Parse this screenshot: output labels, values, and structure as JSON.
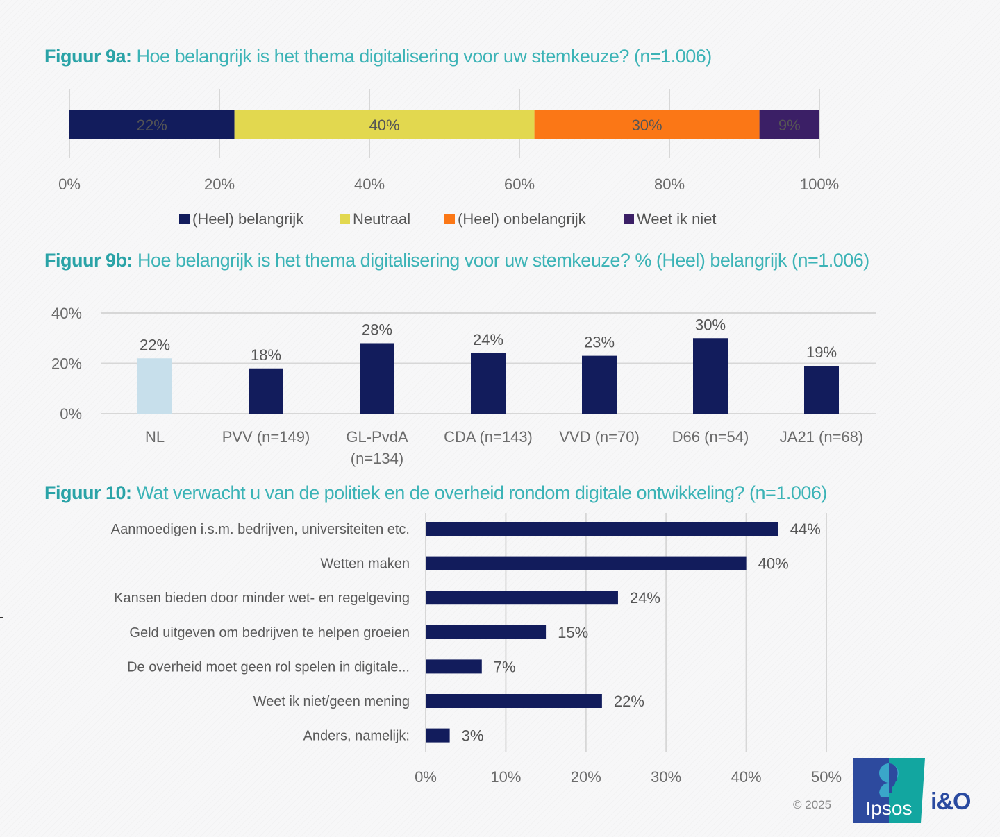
{
  "colors": {
    "title_teal": "#3bb3b6",
    "navy": "#121c5c",
    "yellow": "#e2d84f",
    "orange": "#fb7716",
    "purple": "#3b1f66",
    "light_blue": "#c7dfeb",
    "grid": "#d7d7d7"
  },
  "footer": {
    "copyright": "© 2025",
    "logo_text": "Ipsos",
    "partner_logo": "i&O"
  },
  "chart_data": [
    {
      "id": "fig9a",
      "type": "bar",
      "orientation": "horizontal-stacked",
      "title_label": "Figuur 9a:",
      "title": "Hoe belangrijk is het thema digitalisering voor uw stemkeuze? (n=1.006)",
      "xlim": [
        0,
        100
      ],
      "xticks": [
        "0%",
        "20%",
        "40%",
        "60%",
        "80%",
        "100%"
      ],
      "xtick_values": [
        0,
        20,
        40,
        60,
        80,
        100
      ],
      "grid": true,
      "legend_position": "bottom",
      "series": [
        {
          "name": "(Heel) belangrijk",
          "value": 22,
          "label": "22%",
          "color": "#121c5c",
          "label_color": "#ffffff"
        },
        {
          "name": "Neutraal",
          "value": 40,
          "label": "40%",
          "color": "#e2d84f",
          "label_color": "#6a6a3a"
        },
        {
          "name": "(Heel) onbelangrijk",
          "value": 30,
          "label": "30%",
          "color": "#fb7716",
          "label_color": "#ffe0c4"
        },
        {
          "name": "Weet ik niet",
          "value": 9,
          "label": "9%",
          "color": "#3b1f66",
          "label_color": "#ffffff"
        }
      ]
    },
    {
      "id": "fig9b",
      "type": "bar",
      "orientation": "vertical",
      "title_label": "Figuur 9b:",
      "title": "Hoe belangrijk is het thema digitalisering voor uw stemkeuze? % (Heel) belangrijk (n=1.006)",
      "ylim": [
        0,
        40
      ],
      "yticks": [
        "0%",
        "20%",
        "40%"
      ],
      "ytick_values": [
        0,
        20,
        40
      ],
      "grid": true,
      "categories": [
        "NL",
        "PVV (n=149)",
        "GL-PvdA (n=134)",
        "CDA (n=143)",
        "VVD (n=70)",
        "D66 (n=54)",
        "JA21 (n=68)"
      ],
      "category_lines": [
        [
          "NL"
        ],
        [
          "PVV (n=149)"
        ],
        [
          "GL-PvdA",
          "(n=134)"
        ],
        [
          "CDA (n=143)"
        ],
        [
          "VVD (n=70)"
        ],
        [
          "D66 (n=54)"
        ],
        [
          "JA21 (n=68)"
        ]
      ],
      "values": [
        22,
        18,
        28,
        24,
        23,
        30,
        19
      ],
      "labels": [
        "22%",
        "18%",
        "28%",
        "24%",
        "23%",
        "30%",
        "19%"
      ],
      "bar_colors": [
        "#c7dfeb",
        "#121c5c",
        "#121c5c",
        "#121c5c",
        "#121c5c",
        "#121c5c",
        "#121c5c"
      ]
    },
    {
      "id": "fig10",
      "type": "bar",
      "orientation": "horizontal",
      "title_label": "Figuur 10:",
      "title": "Wat verwacht u van de politiek en de overheid rondom digitale ontwikkeling? (n=1.006)",
      "xlim": [
        0,
        50
      ],
      "xticks": [
        "0%",
        "10%",
        "20%",
        "30%",
        "40%",
        "50%"
      ],
      "xtick_values": [
        0,
        10,
        20,
        30,
        40,
        50
      ],
      "grid": true,
      "categories": [
        "Aanmoedigen i.s.m. bedrijven, universiteiten etc.",
        "Wetten maken",
        "Kansen bieden door minder wet- en regelgeving",
        "Geld uitgeven om bedrijven te helpen groeien",
        "De overheid moet geen rol spelen in digitale...",
        "Weet ik niet/geen mening",
        "Anders, namelijk:"
      ],
      "values": [
        44,
        40,
        24,
        15,
        7,
        22,
        3
      ],
      "labels": [
        "44%",
        "40%",
        "24%",
        "15%",
        "7%",
        "22%",
        "3%"
      ],
      "color": "#121c5c"
    }
  ]
}
